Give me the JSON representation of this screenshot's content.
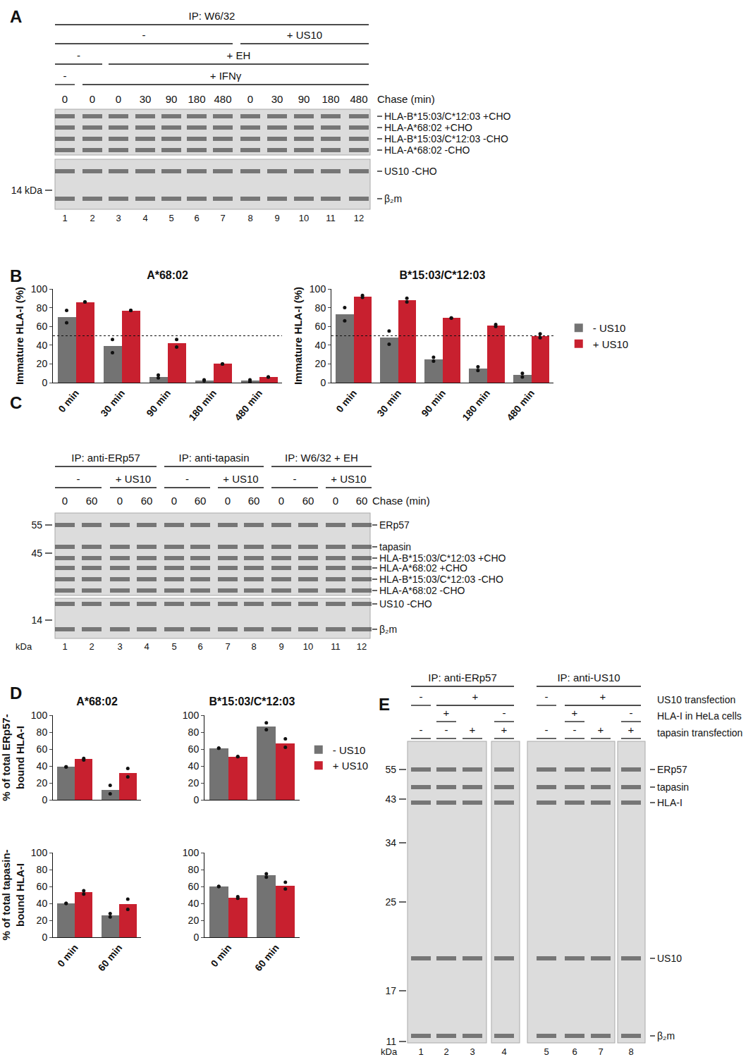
{
  "chart_data": [
    {
      "type": "bar",
      "panel": "B",
      "title": "A*68:02",
      "ylabel": "Immature HLA-I (%)",
      "categories": [
        "0 min",
        "30 min",
        "90 min",
        "180 min",
        "480 min"
      ],
      "series": [
        {
          "name": "- US10",
          "color": "#737373",
          "values": [
            70,
            39,
            6,
            2,
            2
          ],
          "points": [
            [
              77,
              64
            ],
            [
              46,
              32
            ],
            [
              8,
              5
            ],
            [
              3,
              2
            ],
            [
              3,
              1
            ]
          ]
        },
        {
          "name": "+ US10",
          "color": "#c8202f",
          "values": [
            86,
            77,
            42,
            20,
            6
          ],
          "points": [
            [
              86,
              86
            ],
            [
              77,
              77
            ],
            [
              46,
              38
            ],
            [
              20,
              20
            ],
            [
              6,
              6
            ]
          ]
        }
      ],
      "ylim": [
        0,
        100
      ],
      "yticks": [
        0,
        20,
        40,
        60,
        80,
        100
      ],
      "hline": 50,
      "grid": false
    },
    {
      "type": "bar",
      "title": "B*15:03/C*12:03",
      "ylabel": "Immature HLA-I (%)",
      "categories": [
        "0 min",
        "30 min",
        "90 min",
        "180 min",
        "480 min"
      ],
      "series": [
        {
          "name": "- US10",
          "color": "#737373",
          "values": [
            73,
            48,
            25,
            15,
            8
          ],
          "points": [
            [
              80,
              66
            ],
            [
              55,
              41
            ],
            [
              27,
              23
            ],
            [
              17,
              13
            ],
            [
              10,
              6
            ]
          ]
        },
        {
          "name": "+ US10",
          "color": "#c8202f",
          "values": [
            92,
            88,
            69,
            61,
            50
          ],
          "points": [
            [
              93,
              91
            ],
            [
              90,
              86
            ],
            [
              69,
              69
            ],
            [
              62,
              60
            ],
            [
              52,
              48
            ]
          ]
        }
      ],
      "ylim": [
        0,
        100
      ],
      "yticks": [
        0,
        20,
        40,
        60,
        80,
        100
      ],
      "hline": 50,
      "grid": false,
      "legend": "right"
    },
    {
      "type": "bar",
      "panel": "D",
      "title": "A*68:02",
      "ylabel": "% of total ERp57-\nbound HLA-I",
      "categories": [
        "0 min",
        "60 min"
      ],
      "series": [
        {
          "name": "- US10",
          "color": "#737373",
          "values": [
            39,
            12
          ],
          "points": [
            [
              39,
              39
            ],
            [
              17,
              7
            ]
          ]
        },
        {
          "name": "+ US10",
          "color": "#c8202f",
          "values": [
            48,
            32
          ],
          "points": [
            [
              49,
              47
            ],
            [
              37,
              27
            ]
          ]
        }
      ],
      "ylim": [
        0,
        100
      ],
      "yticks": [
        0,
        20,
        40,
        60,
        80,
        100
      ],
      "grid": false,
      "tick_labels": "y"
    },
    {
      "type": "bar",
      "title": "B*15:03/C*12:03",
      "categories": [
        "0 min",
        "60 min"
      ],
      "series": [
        {
          "name": "- US10",
          "color": "#737373",
          "values": [
            61,
            87
          ],
          "points": [
            [
              61,
              61
            ],
            [
              91,
              83
            ]
          ]
        },
        {
          "name": "+ US10",
          "color": "#c8202f",
          "values": [
            51,
            67
          ],
          "points": [
            [
              51,
              51
            ],
            [
              72,
              62
            ]
          ]
        }
      ],
      "ylim": [
        0,
        100
      ],
      "yticks": [
        0,
        20,
        40,
        60,
        80,
        100
      ],
      "grid": false,
      "tick_labels": "y",
      "legend": "right"
    },
    {
      "type": "bar",
      "ylabel": "% of total tapasin-\nbound HLA-I",
      "categories": [
        "0 min",
        "60 min"
      ],
      "series": [
        {
          "name": "- US10",
          "color": "#737373",
          "values": [
            40,
            26
          ],
          "points": [
            [
              40,
              40
            ],
            [
              28,
              24
            ]
          ]
        },
        {
          "name": "+ US10",
          "color": "#c8202f",
          "values": [
            53,
            39
          ],
          "points": [
            [
              55,
              51
            ],
            [
              45,
              33
            ]
          ]
        }
      ],
      "ylim": [
        0,
        100
      ],
      "yticks": [
        0,
        20,
        40,
        60,
        80,
        100
      ],
      "grid": false
    },
    {
      "type": "bar",
      "categories": [
        "0 min",
        "60 min"
      ],
      "series": [
        {
          "name": "- US10",
          "color": "#737373",
          "values": [
            60,
            73
          ],
          "points": [
            [
              60,
              60
            ],
            [
              75,
              71
            ]
          ]
        },
        {
          "name": "+ US10",
          "color": "#c8202f",
          "values": [
            47,
            61
          ],
          "points": [
            [
              48,
              46
            ],
            [
              65,
              57
            ]
          ]
        }
      ],
      "ylim": [
        0,
        100
      ],
      "yticks": [
        0,
        20,
        40,
        60,
        80,
        100
      ],
      "grid": false
    }
  ],
  "gels": [
    {
      "panel": "A",
      "headers": [
        [
          {
            "text": "IP: W6/32",
            "from": 1,
            "to": 12
          }
        ],
        [
          {
            "text": "-",
            "from": 1,
            "to": 7
          },
          {
            "text": "+ US10",
            "from": 8,
            "to": 12
          }
        ],
        [
          {
            "text": "-",
            "from": 1,
            "to": 2
          },
          {
            "text": "+ EH",
            "from": 3,
            "to": 12
          }
        ],
        [
          {
            "text": "-",
            "from": 1,
            "to": 1
          },
          {
            "text": "+ IFNγ",
            "from": 2,
            "to": 12
          }
        ]
      ],
      "chase_label": "Chase (min)",
      "chase": [
        0,
        0,
        0,
        30,
        90,
        180,
        480,
        0,
        30,
        90,
        180,
        480
      ],
      "lanes": [
        1,
        2,
        3,
        4,
        5,
        6,
        7,
        8,
        9,
        10,
        11,
        12
      ],
      "band_labels": [
        "HLA-B*15:03/C*12:03 +CHO",
        "HLA-A*68:02 +CHO",
        "HLA-B*15:03/C*12:03 -CHO",
        "HLA-A*68:02 -CHO",
        "US10 -CHO",
        "β₂m"
      ],
      "markers": [
        "14 kDa"
      ]
    },
    {
      "panel": "C",
      "headers": [
        [
          {
            "text": "IP: anti-ERp57",
            "from": 1,
            "to": 4
          },
          {
            "text": "IP: anti-tapasin",
            "from": 5,
            "to": 8
          },
          {
            "text": "IP: W6/32 + EH",
            "from": 9,
            "to": 12
          }
        ],
        [
          {
            "text": "-",
            "from": 1,
            "to": 2
          },
          {
            "text": "+ US10",
            "from": 3,
            "to": 4
          },
          {
            "text": "-",
            "from": 5,
            "to": 6
          },
          {
            "text": "+ US10",
            "from": 7,
            "to": 8
          },
          {
            "text": "-",
            "from": 9,
            "to": 10
          },
          {
            "text": "+ US10",
            "from": 11,
            "to": 12
          }
        ]
      ],
      "chase_label": "Chase (min)",
      "chase": [
        0,
        60,
        0,
        60,
        0,
        60,
        0,
        60,
        0,
        60,
        0,
        60
      ],
      "lanes": [
        1,
        2,
        3,
        4,
        5,
        6,
        7,
        8,
        9,
        10,
        11,
        12
      ],
      "band_labels": [
        "ERp57",
        "tapasin",
        "HLA-B*15:03/C*12:03 +CHO",
        "HLA-A*68:02 +CHO",
        "HLA-B*15:03/C*12:03 -CHO",
        "HLA-A*68:02 -CHO",
        "US10 -CHO",
        "β₂m"
      ],
      "markers": [
        55,
        45,
        14
      ],
      "marker_unit": "kDa"
    },
    {
      "panel": "E",
      "headers": [
        [
          {
            "text": "IP: anti-ERp57",
            "from": 1,
            "to": 4
          },
          {
            "text": "IP: anti-US10",
            "from": 5,
            "to": 8
          }
        ]
      ],
      "row_headers": [
        {
          "label": "US10 transfection",
          "segments": [
            {
              "text": "-",
              "from": 1,
              "to": 1
            },
            {
              "text": "+",
              "from": 2,
              "to": 4
            },
            {
              "text": "-",
              "from": 5,
              "to": 5
            },
            {
              "text": "+",
              "from": 6,
              "to": 8
            }
          ]
        },
        {
          "label": "HLA-I in HeLa cells",
          "segments": [
            {
              "text": "+",
              "from": 2,
              "to": 2
            },
            {
              "text": "-",
              "from": 4,
              "to": 4
            },
            {
              "text": "+",
              "from": 6,
              "to": 6
            },
            {
              "text": "-",
              "from": 8,
              "to": 8
            }
          ]
        },
        {
          "label": "tapasin transfection",
          "segments": [
            {
              "text": "-",
              "from": 1,
              "to": 1
            },
            {
              "text": "-",
              "from": 2,
              "to": 2
            },
            {
              "text": "+",
              "from": 3,
              "to": 3
            },
            {
              "text": "+",
              "from": 4,
              "to": 4
            },
            {
              "text": "-",
              "from": 5,
              "to": 5
            },
            {
              "text": "-",
              "from": 6,
              "to": 6
            },
            {
              "text": "+",
              "from": 7,
              "to": 7
            },
            {
              "text": "+",
              "from": 8,
              "to": 8
            }
          ]
        }
      ],
      "lanes": [
        1,
        2,
        3,
        4,
        5,
        6,
        7,
        8
      ],
      "band_labels": [
        "ERp57",
        "tapasin",
        "HLA-I",
        "US10",
        "β₂m"
      ],
      "markers": [
        55,
        43,
        34,
        25,
        17,
        11
      ],
      "marker_unit": "kDa"
    }
  ]
}
